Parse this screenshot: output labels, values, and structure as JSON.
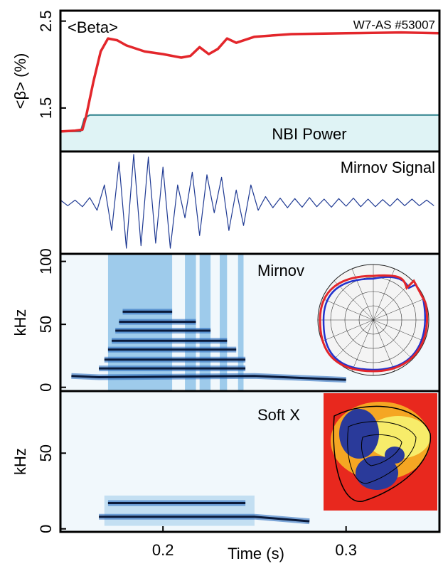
{
  "chart_data": [
    {
      "type": "line",
      "title": "<Beta>",
      "annotations": [
        "W7-AS #53007",
        "NBI Power"
      ],
      "y_label": "<β> (%)",
      "xlim": [
        0.144,
        0.351
      ],
      "ylim": [
        1.0,
        2.62
      ],
      "yticks": [
        1.5,
        2.5
      ],
      "series": [
        {
          "color": "#2a7f8a",
          "fill": "#dff3f5",
          "x": [
            0.144,
            0.155,
            0.157,
            0.16,
            0.351
          ],
          "values": [
            1.23,
            1.23,
            1.38,
            1.42,
            1.42
          ]
        },
        {
          "color": "#e3262b",
          "x": [
            0.144,
            0.152,
            0.156,
            0.158,
            0.162,
            0.166,
            0.17,
            0.175,
            0.18,
            0.19,
            0.2,
            0.21,
            0.215,
            0.22,
            0.225,
            0.23,
            0.235,
            0.24,
            0.25,
            0.27,
            0.3,
            0.33,
            0.351
          ],
          "values": [
            1.23,
            1.24,
            1.25,
            1.4,
            1.8,
            2.15,
            2.3,
            2.28,
            2.22,
            2.15,
            2.12,
            2.08,
            2.1,
            2.2,
            2.12,
            2.18,
            2.3,
            2.25,
            2.32,
            2.35,
            2.36,
            2.37,
            2.36
          ]
        }
      ]
    },
    {
      "type": "line",
      "title": "Mirnov Signal",
      "xlim": [
        0.144,
        0.351
      ],
      "series": [
        {
          "color": "#1f3a93",
          "x": [
            0.144,
            0.148,
            0.152,
            0.156,
            0.16,
            0.164,
            0.168,
            0.172,
            0.176,
            0.18,
            0.184,
            0.188,
            0.192,
            0.196,
            0.2,
            0.204,
            0.208,
            0.212,
            0.216,
            0.22,
            0.224,
            0.228,
            0.232,
            0.236,
            0.24,
            0.244,
            0.248,
            0.252,
            0.256,
            0.26,
            0.264,
            0.268,
            0.272,
            0.276,
            0.28,
            0.284,
            0.288,
            0.292,
            0.296,
            0.3,
            0.304,
            0.308,
            0.312,
            0.316,
            0.32,
            0.324,
            0.328,
            0.332,
            0.336,
            0.34,
            0.344,
            0.348
          ],
          "values": [
            0.05,
            -0.06,
            0.05,
            -0.08,
            0.1,
            -0.15,
            0.35,
            -0.55,
            0.8,
            -0.9,
            0.95,
            -0.85,
            0.9,
            -0.8,
            0.7,
            -0.9,
            0.35,
            -0.3,
            0.6,
            -0.65,
            0.55,
            -0.2,
            0.5,
            -0.55,
            0.25,
            -0.45,
            0.35,
            -0.15,
            0.12,
            -0.1,
            0.09,
            -0.1,
            0.08,
            -0.09,
            0.1,
            -0.08,
            0.07,
            -0.09,
            0.08,
            -0.07,
            0.09,
            -0.08,
            0.07,
            -0.08,
            0.06,
            -0.07,
            0.08,
            -0.06,
            0.07,
            -0.06,
            0.05,
            -0.06
          ]
        }
      ]
    },
    {
      "type": "spectrogram",
      "title": "Mirnov",
      "y_label": "kHz",
      "xlim": [
        0.144,
        0.351
      ],
      "ylim": [
        -3,
        106
      ],
      "yticks": [
        0,
        50,
        100
      ],
      "burst_color": "#5aa6dc",
      "bursts": [
        [
          0.17,
          0.205
        ],
        [
          0.212,
          0.218
        ],
        [
          0.22,
          0.226
        ],
        [
          0.231,
          0.235
        ],
        [
          0.241,
          0.244
        ]
      ],
      "mode_color": "#0a1a3a",
      "modes": [
        {
          "x": [
            0.15,
            0.165,
            0.25,
            0.3
          ],
          "values": [
            9,
            8,
            9,
            6
          ]
        },
        {
          "x": [
            0.165,
            0.245
          ],
          "values": [
            15,
            15
          ]
        },
        {
          "x": [
            0.168,
            0.245
          ],
          "values": [
            22,
            22
          ]
        },
        {
          "x": [
            0.17,
            0.24
          ],
          "values": [
            30,
            30
          ]
        },
        {
          "x": [
            0.172,
            0.235
          ],
          "values": [
            37,
            37
          ]
        },
        {
          "x": [
            0.174,
            0.226
          ],
          "values": [
            45,
            45
          ]
        },
        {
          "x": [
            0.176,
            0.218
          ],
          "values": [
            52,
            52
          ]
        },
        {
          "x": [
            0.178,
            0.205
          ],
          "values": [
            60,
            60
          ]
        }
      ]
    },
    {
      "type": "spectrogram",
      "title": "Soft X",
      "y_label": "kHz",
      "x_label": "Time (s)",
      "xlim": [
        0.144,
        0.351
      ],
      "ylim": [
        -2,
        91
      ],
      "yticks": [
        0,
        50
      ],
      "xticks": [
        0.2,
        0.3
      ],
      "burst_color": "#9ccbea",
      "bursts": [
        [
          0.168,
          0.25
        ]
      ],
      "mode_color": "#0a1a3a",
      "modes": [
        {
          "x": [
            0.165,
            0.25,
            0.28
          ],
          "values": [
            8,
            8,
            5
          ]
        },
        {
          "x": [
            0.17,
            0.245
          ],
          "values": [
            17,
            17
          ]
        }
      ]
    }
  ]
}
